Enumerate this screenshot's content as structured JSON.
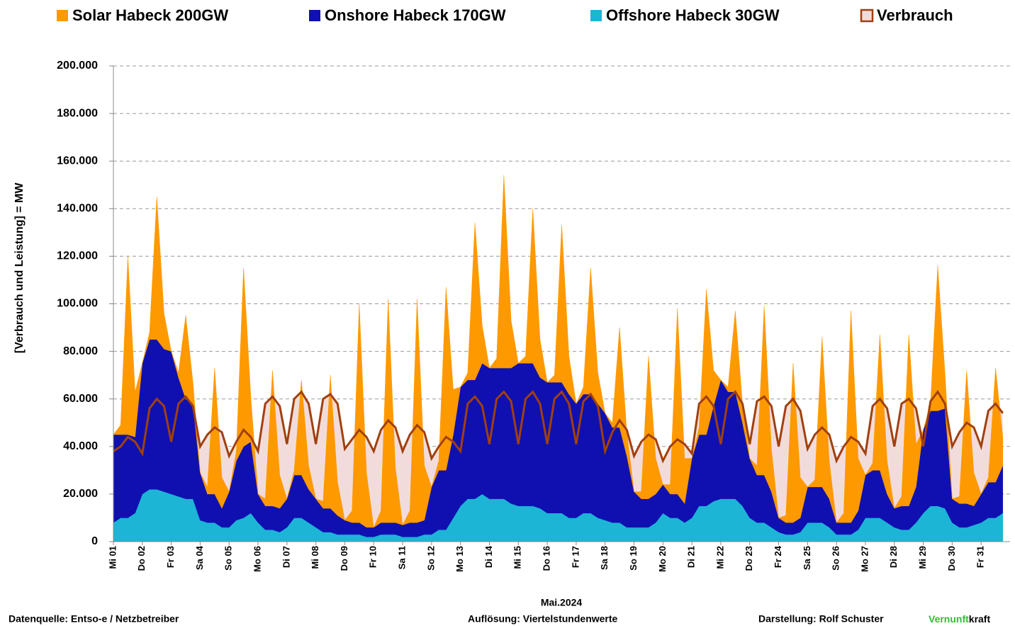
{
  "chart_data": {
    "type": "stacked_area",
    "x_label": "Mai.2024",
    "y_label": "[Verbrauch und Leistung] =  MW",
    "footer": {
      "source": "Datenquelle: Entso-e  / Netzbetreiber",
      "resolution": "Auflösung: Viertelstundenwerte",
      "author": "Darstellung:  Rolf Schuster",
      "brand_green": "Vernunft",
      "brand_dark": "kraft"
    },
    "ylim": [
      0,
      200000
    ],
    "yticks": [
      0,
      {
        "value": 20000,
        "label": "20.000"
      },
      {
        "value": 40000,
        "label": "40.000"
      },
      {
        "value": 60000,
        "label": "60.000"
      },
      {
        "value": 80000,
        "label": "80.000"
      },
      {
        "value": 100000,
        "label": "100.000"
      },
      {
        "value": 120000,
        "label": "120.000"
      },
      {
        "value": 140000,
        "label": "140.000"
      },
      {
        "value": 160000,
        "label": "160.000"
      },
      {
        "value": 180000,
        "label": "180.000"
      },
      {
        "value": 200000,
        "label": "200.000"
      }
    ],
    "grid": true,
    "categories": [
      "Mi 01",
      null,
      null,
      null,
      "Do 02",
      null,
      null,
      null,
      "Fr 03",
      null,
      null,
      null,
      "Sa 04",
      null,
      null,
      null,
      "So 05",
      null,
      null,
      null,
      "Mo 06",
      null,
      null,
      null,
      "Di 07",
      null,
      null,
      null,
      "Mi 08",
      null,
      null,
      null,
      "Do 09",
      null,
      null,
      null,
      "Fr 10",
      null,
      null,
      null,
      "Sa 11",
      null,
      null,
      null,
      "So 12",
      null,
      null,
      null,
      "Mo 13",
      null,
      null,
      null,
      "Di 14",
      null,
      null,
      null,
      "Mi 15",
      null,
      null,
      null,
      "Do 16",
      null,
      null,
      null,
      "Fr 17",
      null,
      null,
      null,
      "Sa 18",
      null,
      null,
      null,
      "So 19",
      null,
      null,
      null,
      "Mo 20",
      null,
      null,
      null,
      "Di 21",
      null,
      null,
      null,
      "Mi 22",
      null,
      null,
      null,
      "Do 23",
      null,
      null,
      null,
      "Fr 24",
      null,
      null,
      null,
      "Sa 25",
      null,
      null,
      null,
      "So 26",
      null,
      null,
      null,
      "Mo 27",
      null,
      null,
      null,
      "Di 28",
      null,
      null,
      null,
      "Mi 29",
      null,
      null,
      null,
      "Do 30",
      null,
      null,
      null,
      "Fr 31",
      null,
      null,
      null
    ],
    "series": [
      {
        "name": "Solar Habeck 200GW",
        "kind": "area",
        "color": "#ff9900",
        "values": [
          0,
          4000,
          75000,
          19000,
          0,
          3000,
          60000,
          15000,
          0,
          2000,
          35000,
          9000,
          0,
          3000,
          53000,
          13000,
          0,
          4000,
          75000,
          19000,
          0,
          3000,
          57000,
          14000,
          0,
          2000,
          40000,
          10000,
          0,
          3000,
          56000,
          14000,
          0,
          5000,
          92000,
          23000,
          0,
          5000,
          94000,
          23000,
          0,
          5000,
          94000,
          23000,
          0,
          4000,
          77000,
          19000,
          0,
          3000,
          66000,
          16000,
          0,
          4000,
          81000,
          20000,
          0,
          3000,
          65000,
          16000,
          0,
          3000,
          66000,
          16000,
          0,
          3000,
          53000,
          13000,
          0,
          2000,
          42000,
          10000,
          0,
          3000,
          60000,
          15000,
          0,
          4000,
          78000,
          19000,
          0,
          3000,
          61000,
          15000,
          0,
          2000,
          34000,
          8000,
          0,
          4000,
          71000,
          18000,
          0,
          3000,
          67000,
          17000,
          0,
          3000,
          63000,
          16000,
          0,
          4000,
          89000,
          22000,
          0,
          3000,
          57000,
          14000,
          0,
          4000,
          72000,
          18000,
          0,
          3000,
          61000,
          15000,
          0,
          3000,
          56000,
          14000,
          0,
          2000,
          48000,
          12000
        ]
      },
      {
        "name": "Onshore Habeck 170GW",
        "kind": "area",
        "color": "#1010b0",
        "values": [
          37000,
          35000,
          35000,
          32000,
          55000,
          63000,
          63000,
          60000,
          60000,
          50000,
          42000,
          40000,
          20000,
          12000,
          12000,
          8000,
          15000,
          25000,
          30000,
          30000,
          12000,
          10000,
          10000,
          10000,
          12000,
          18000,
          18000,
          14000,
          12000,
          10000,
          10000,
          8000,
          6000,
          5000,
          5000,
          4000,
          4000,
          5000,
          5000,
          5000,
          5000,
          6000,
          6000,
          6000,
          20000,
          25000,
          25000,
          35000,
          50000,
          50000,
          50000,
          55000,
          55000,
          55000,
          55000,
          57000,
          60000,
          60000,
          60000,
          55000,
          55000,
          55000,
          55000,
          52000,
          48000,
          50000,
          50000,
          48000,
          45000,
          40000,
          40000,
          30000,
          15000,
          12000,
          12000,
          12000,
          12000,
          10000,
          10000,
          8000,
          25000,
          30000,
          30000,
          40000,
          50000,
          45000,
          45000,
          35000,
          25000,
          20000,
          20000,
          15000,
          6000,
          5000,
          5000,
          6000,
          15000,
          15000,
          15000,
          12000,
          5000,
          5000,
          5000,
          8000,
          18000,
          20000,
          20000,
          12000,
          8000,
          10000,
          10000,
          15000,
          35000,
          40000,
          40000,
          42000,
          10000,
          10000,
          10000,
          8000,
          12000,
          15000,
          15000,
          20000
        ]
      },
      {
        "name": "Offshore Habeck 30GW",
        "kind": "area",
        "color": "#1cb5d6",
        "values": [
          8000,
          10000,
          10000,
          12000,
          20000,
          22000,
          22000,
          21000,
          20000,
          19000,
          18000,
          18000,
          9000,
          8000,
          8000,
          6000,
          6000,
          9000,
          10000,
          12000,
          8000,
          5000,
          5000,
          4000,
          6000,
          10000,
          10000,
          8000,
          6000,
          4000,
          4000,
          3000,
          3000,
          3000,
          3000,
          2000,
          2000,
          3000,
          3000,
          3000,
          2000,
          2000,
          2000,
          3000,
          3000,
          5000,
          5000,
          10000,
          15000,
          18000,
          18000,
          20000,
          18000,
          18000,
          18000,
          16000,
          15000,
          15000,
          15000,
          14000,
          12000,
          12000,
          12000,
          10000,
          10000,
          12000,
          12000,
          10000,
          9000,
          8000,
          8000,
          6000,
          6000,
          6000,
          6000,
          8000,
          12000,
          10000,
          10000,
          8000,
          10000,
          15000,
          15000,
          17000,
          18000,
          18000,
          18000,
          15000,
          10000,
          8000,
          8000,
          6000,
          4000,
          3000,
          3000,
          4000,
          8000,
          8000,
          8000,
          6000,
          3000,
          3000,
          3000,
          5000,
          10000,
          10000,
          10000,
          8000,
          6000,
          5000,
          5000,
          8000,
          12000,
          15000,
          15000,
          14000,
          8000,
          6000,
          6000,
          7000,
          8000,
          10000,
          10000,
          12000
        ]
      },
      {
        "name": "Verbrauch",
        "kind": "line",
        "color": "#a0400f",
        "fill_color": "#f2dcdb",
        "values": [
          38000,
          40000,
          44000,
          42000,
          37000,
          56000,
          60000,
          57000,
          42000,
          58000,
          61000,
          57000,
          40000,
          45000,
          48000,
          46000,
          36000,
          42000,
          47000,
          44000,
          38000,
          58000,
          61000,
          57000,
          41000,
          60000,
          63000,
          58000,
          41000,
          60000,
          62000,
          58000,
          39000,
          43000,
          47000,
          44000,
          38000,
          47000,
          51000,
          48000,
          38000,
          45000,
          49000,
          46000,
          35000,
          40000,
          44000,
          42000,
          38000,
          58000,
          61000,
          57000,
          41000,
          60000,
          63000,
          59000,
          41000,
          60000,
          63000,
          58000,
          41000,
          60000,
          63000,
          58000,
          41000,
          59000,
          62000,
          57000,
          38000,
          46000,
          51000,
          47000,
          36000,
          42000,
          45000,
          43000,
          34000,
          40000,
          43000,
          41000,
          37000,
          58000,
          61000,
          57000,
          41000,
          60000,
          63000,
          58000,
          41000,
          59000,
          61000,
          57000,
          40000,
          57000,
          60000,
          55000,
          39000,
          45000,
          48000,
          45000,
          34000,
          40000,
          44000,
          42000,
          37000,
          57000,
          60000,
          56000,
          40000,
          58000,
          60000,
          56000,
          40000,
          59000,
          63000,
          58000,
          40000,
          46000,
          50000,
          48000,
          40000,
          55000,
          58000,
          54000
        ]
      }
    ]
  }
}
